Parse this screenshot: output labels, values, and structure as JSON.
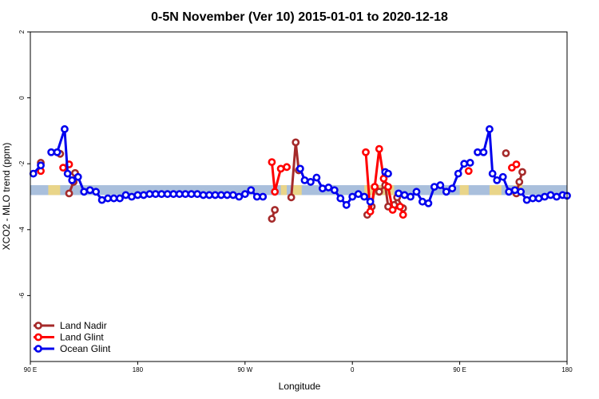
{
  "chart_data": {
    "type": "line",
    "title": "0-5N November (Ver 10)   2015-01-01 to 2020-12-18",
    "xlabel": "Longitude",
    "ylabel": "XCO2 - MLO trend (ppm)",
    "xlim": [
      90,
      450
    ],
    "ylim": [
      -8,
      2
    ],
    "x_ticks": [
      {
        "value": 90,
        "label": "90 E"
      },
      {
        "value": 162,
        "label": "180"
      },
      {
        "value": 234,
        "label": "90 W"
      },
      {
        "value": 306,
        "label": "0"
      },
      {
        "value": 378,
        "label": "90 E"
      },
      {
        "value": 450,
        "label": "180"
      }
    ],
    "y_ticks": [
      {
        "value": 2,
        "label": "2"
      },
      {
        "value": 0,
        "label": "0"
      },
      {
        "value": -2,
        "label": "-2"
      },
      {
        "value": -4,
        "label": "-4"
      },
      {
        "value": -6,
        "label": "-6"
      }
    ],
    "band": {
      "ymin": -2.95,
      "ymax": -2.65,
      "color": "#a9bfdc",
      "highlight_color": "#f5d87a"
    },
    "series": [
      {
        "name": "Land Nadir",
        "color": "#a52a2a",
        "segments": [
          [
            [
              97,
              -1.97
            ]
          ],
          [
            [
              110,
              -1.7
            ]
          ],
          [
            [
              116,
              -2.9
            ],
            [
              119,
              -2.55
            ],
            [
              120,
              -2.28
            ]
          ],
          [
            [
              252,
              -3.67
            ],
            [
              254,
              -3.4
            ]
          ],
          [
            [
              265,
              -3.02
            ],
            [
              268,
              -1.35
            ],
            [
              270,
              -2.2
            ]
          ],
          [
            [
              316,
              -3.55
            ],
            [
              319,
              -3.3
            ],
            [
              321,
              -2.7
            ],
            [
              324,
              -2.85
            ],
            [
              328,
              -2.65
            ],
            [
              330,
              -3.3
            ],
            [
              334,
              -3.25
            ],
            [
              336,
              -3.02
            ],
            [
              340,
              -3.35
            ]
          ],
          [
            [
              409,
              -1.68
            ]
          ],
          [
            [
              416,
              -2.9
            ],
            [
              418,
              -2.55
            ],
            [
              420,
              -2.25
            ]
          ]
        ]
      },
      {
        "name": "Land Glint",
        "color": "#ff0000",
        "segments": [
          [
            [
              97,
              -2.22
            ]
          ],
          [
            [
              112,
              -2.12
            ],
            [
              116,
              -2.02
            ]
          ],
          [
            [
              252,
              -1.95
            ],
            [
              254,
              -2.85
            ],
            [
              258,
              -2.15
            ],
            [
              262,
              -2.1
            ]
          ],
          [
            [
              315,
              -1.65
            ],
            [
              318,
              -3.45
            ],
            [
              321,
              -2.7
            ],
            [
              324,
              -1.55
            ],
            [
              327,
              -2.45
            ],
            [
              330,
              -2.7
            ],
            [
              333,
              -3.4
            ],
            [
              338,
              -3.3
            ],
            [
              340,
              -3.55
            ]
          ],
          [
            [
              384,
              -2.22
            ]
          ],
          [
            [
              413,
              -2.12
            ],
            [
              416,
              -2.02
            ]
          ]
        ]
      },
      {
        "name": "Ocean Glint",
        "color": "#0000ee",
        "segments": [
          [
            [
              92,
              -2.3
            ],
            [
              97,
              -2.05
            ]
          ],
          [
            [
              104,
              -1.65
            ],
            [
              108,
              -1.65
            ],
            [
              113,
              -0.95
            ],
            [
              115,
              -2.3
            ],
            [
              118,
              -2.5
            ],
            [
              122,
              -2.4
            ],
            [
              126,
              -2.85
            ],
            [
              130,
              -2.8
            ],
            [
              134,
              -2.85
            ],
            [
              138,
              -3.1
            ],
            [
              142,
              -3.05
            ],
            [
              146,
              -3.05
            ],
            [
              150,
              -3.05
            ],
            [
              154,
              -2.95
            ],
            [
              158,
              -3.0
            ],
            [
              162,
              -2.95
            ],
            [
              166,
              -2.95
            ],
            [
              170,
              -2.92
            ],
            [
              174,
              -2.92
            ],
            [
              178,
              -2.92
            ],
            [
              182,
              -2.92
            ],
            [
              186,
              -2.92
            ],
            [
              190,
              -2.92
            ],
            [
              194,
              -2.92
            ],
            [
              198,
              -2.92
            ],
            [
              202,
              -2.92
            ],
            [
              206,
              -2.95
            ],
            [
              210,
              -2.95
            ],
            [
              214,
              -2.95
            ],
            [
              218,
              -2.95
            ],
            [
              222,
              -2.95
            ],
            [
              226,
              -2.95
            ],
            [
              230,
              -3.0
            ],
            [
              234,
              -2.92
            ],
            [
              238,
              -2.8
            ],
            [
              242,
              -3.0
            ],
            [
              246,
              -3.0
            ]
          ],
          [
            [
              271,
              -2.15
            ],
            [
              274,
              -2.5
            ],
            [
              278,
              -2.55
            ],
            [
              282,
              -2.42
            ],
            [
              286,
              -2.75
            ],
            [
              290,
              -2.72
            ],
            [
              294,
              -2.8
            ],
            [
              298,
              -3.05
            ],
            [
              302,
              -3.25
            ],
            [
              306,
              -3.0
            ],
            [
              310,
              -2.92
            ],
            [
              314,
              -3.0
            ],
            [
              318,
              -3.15
            ]
          ],
          [
            [
              328,
              -2.25
            ],
            [
              330,
              -2.3
            ]
          ],
          [
            [
              337,
              -2.9
            ],
            [
              341,
              -2.95
            ],
            [
              345,
              -3.0
            ],
            [
              349,
              -2.85
            ],
            [
              353,
              -3.15
            ],
            [
              357,
              -3.2
            ],
            [
              361,
              -2.7
            ],
            [
              365,
              -2.65
            ],
            [
              369,
              -2.85
            ],
            [
              373,
              -2.75
            ],
            [
              377,
              -2.3
            ],
            [
              381,
              -2.0
            ],
            [
              385,
              -1.97
            ]
          ],
          [
            [
              390,
              -1.65
            ],
            [
              394,
              -1.65
            ],
            [
              398,
              -0.95
            ],
            [
              400,
              -2.3
            ],
            [
              403,
              -2.5
            ],
            [
              407,
              -2.4
            ],
            [
              411,
              -2.85
            ],
            [
              415,
              -2.8
            ],
            [
              419,
              -2.85
            ],
            [
              423,
              -3.1
            ],
            [
              427,
              -3.05
            ],
            [
              431,
              -3.05
            ],
            [
              435,
              -3.0
            ],
            [
              439,
              -2.95
            ],
            [
              443,
              -3.0
            ],
            [
              447,
              -2.95
            ],
            [
              450,
              -2.97
            ]
          ]
        ]
      }
    ],
    "legend_position": "bottom-left",
    "grid": false
  }
}
